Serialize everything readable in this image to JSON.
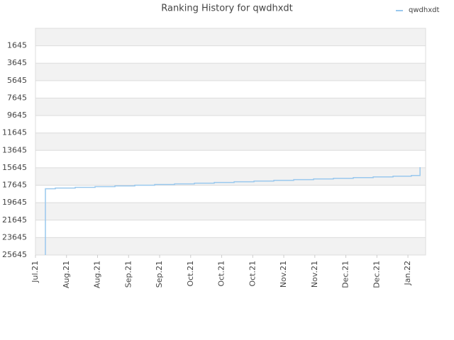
{
  "chart_data": {
    "type": "line",
    "title": "Ranking History for qwdhxdt",
    "series": [
      {
        "name": "qwdhxdt",
        "color": "#99c8ee",
        "x": [
          0.32,
          0.32,
          0.64,
          0.64,
          1.28,
          1.28,
          1.92,
          1.92,
          2.56,
          2.56,
          3.2,
          3.2,
          3.84,
          3.84,
          4.48,
          4.48,
          5.12,
          5.12,
          5.76,
          5.76,
          6.4,
          6.4,
          7.04,
          7.04,
          7.68,
          7.68,
          8.32,
          8.32,
          8.96,
          8.96,
          9.6,
          9.6,
          10.24,
          10.24,
          10.88,
          10.88,
          11.52,
          11.52,
          12.11,
          12.11,
          12.39,
          12.39
        ],
        "values": [
          25645,
          18045,
          18045,
          17965,
          17965,
          17885,
          17885,
          17805,
          17805,
          17725,
          17725,
          17645,
          17645,
          17565,
          17565,
          17485,
          17485,
          17405,
          17405,
          17325,
          17325,
          17245,
          17245,
          17165,
          17165,
          17085,
          17085,
          17005,
          17005,
          16925,
          16925,
          16845,
          16845,
          16765,
          16765,
          16685,
          16685,
          16605,
          16605,
          16525,
          16525,
          15565
        ]
      }
    ],
    "xlim": [
      0,
      12.57
    ],
    "xticks": [
      {
        "value": 0,
        "label": "Jul.21"
      },
      {
        "value": 1,
        "label": "Aug.21"
      },
      {
        "value": 2,
        "label": "Aug.21"
      },
      {
        "value": 3,
        "label": "Sep.21"
      },
      {
        "value": 4,
        "label": "Sep.21"
      },
      {
        "value": 5,
        "label": "Oct.21"
      },
      {
        "value": 6,
        "label": "Oct.21"
      },
      {
        "value": 7,
        "label": "Oct.21"
      },
      {
        "value": 8,
        "label": "Nov.21"
      },
      {
        "value": 9,
        "label": "Nov.21"
      },
      {
        "value": 10,
        "label": "Dec.21"
      },
      {
        "value": 11,
        "label": "Dec.21"
      },
      {
        "value": 12,
        "label": "Jan.22"
      }
    ],
    "ylim": [
      25645,
      -355
    ],
    "yticks": [
      1645,
      3645,
      5645,
      7645,
      9645,
      11645,
      13645,
      15645,
      17645,
      19645,
      21645,
      23645,
      25645
    ],
    "grid": true,
    "legend": "top-right"
  }
}
